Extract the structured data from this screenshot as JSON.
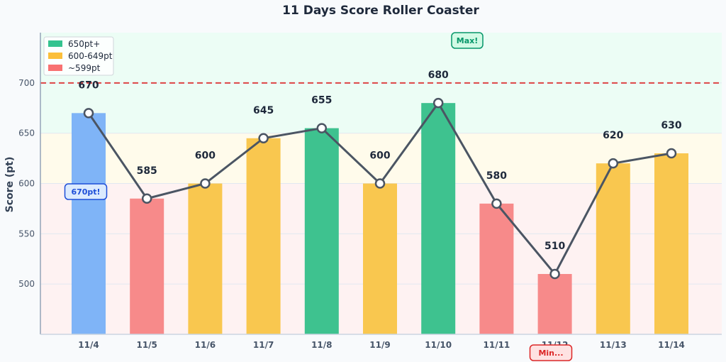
{
  "chart_data": {
    "type": "bar",
    "title": "11 Days Score Roller Coaster",
    "xlabel": "",
    "ylabel": "Score (pt)",
    "categories": [
      "11/4",
      "11/5",
      "11/6",
      "11/7",
      "11/8",
      "11/9",
      "11/10",
      "11/11",
      "11/12",
      "11/13",
      "11/14"
    ],
    "values": [
      670,
      585,
      600,
      645,
      655,
      600,
      680,
      580,
      510,
      620,
      630
    ],
    "ylim": [
      450,
      750
    ],
    "yticks": [
      500,
      550,
      600,
      650,
      700
    ],
    "grid": true,
    "reference_line": {
      "value": 700,
      "color": "#dc2626",
      "style": "dashed"
    },
    "bands": [
      {
        "from": 650,
        "to": 750,
        "color": "#ecfdf5"
      },
      {
        "from": 600,
        "to": 650,
        "color": "#fffbeb"
      },
      {
        "from": 450,
        "to": 600,
        "color": "#fef2f2"
      }
    ],
    "legend": {
      "position": "top-left",
      "entries": [
        {
          "label": "650pt+",
          "color": "#34c38f"
        },
        {
          "label": "600-649pt",
          "color": "#fbbf3a"
        },
        {
          "label": "~599pt",
          "color": "#f87171"
        }
      ]
    },
    "bar_colors": [
      "#7fb4f7",
      "#f78a8a",
      "#f9c74f",
      "#f9c74f",
      "#3ec28f",
      "#f9c74f",
      "#3ec28f",
      "#f78a8a",
      "#f78a8a",
      "#f9c74f",
      "#f9c74f"
    ],
    "line": {
      "color": "#4b5563",
      "marker_fill": "#ffffff"
    },
    "annotations": [
      {
        "text": "Max!",
        "category": "11/10",
        "color": "#059669",
        "bg": "#d1fae5"
      },
      {
        "text": "670pt!",
        "category": "11/4",
        "color": "#1d4ed8",
        "bg": "#dbeafe"
      },
      {
        "text": "Min...",
        "category": "11/12",
        "color": "#dc2626",
        "bg": "#fee2e2"
      }
    ]
  }
}
